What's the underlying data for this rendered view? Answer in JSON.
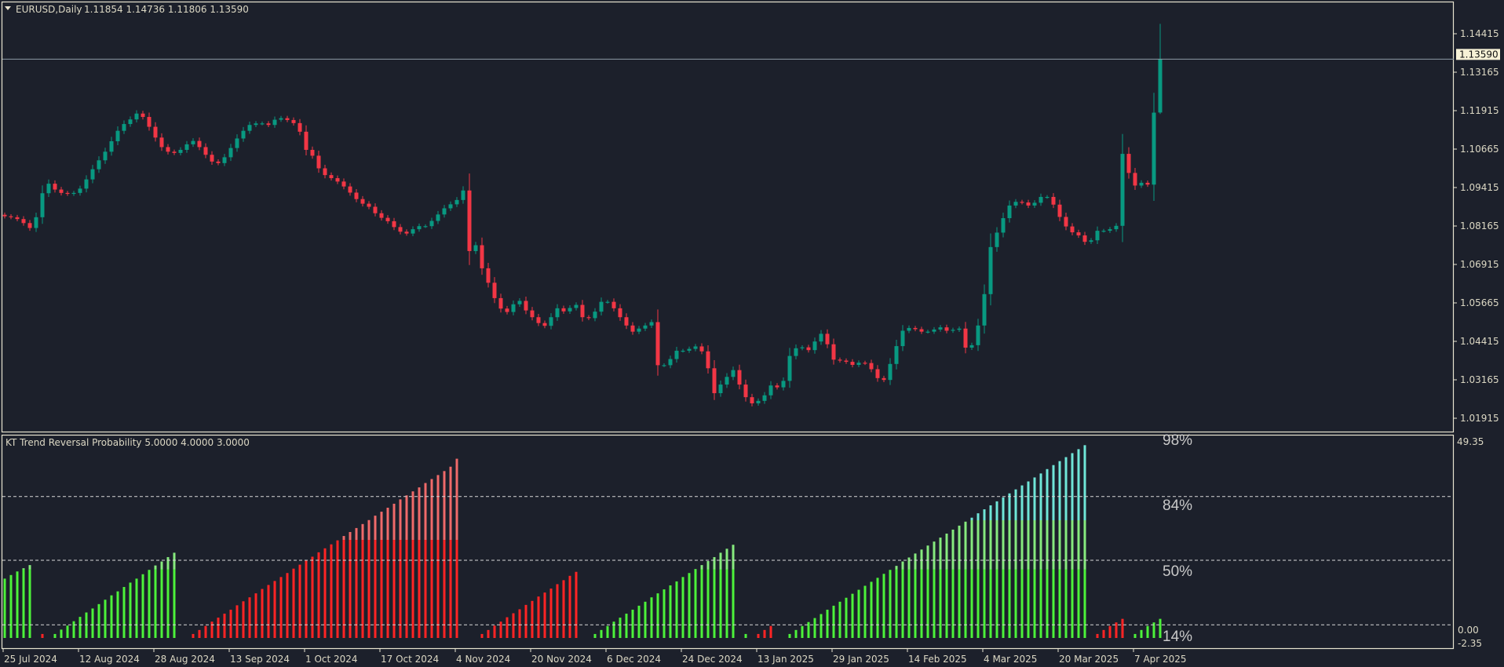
{
  "header": {
    "symbol": "EURUSD,Daily",
    "ohlc_text": "1.11854 1.14736 1.11806 1.13590",
    "menu_icon": "triangle-down-icon"
  },
  "indicator": {
    "title": "KT Trend Reversal Probability 5.0000 4.0000 3.0000",
    "axis_max_label": "49.35",
    "axis_zero_label": "0.00",
    "axis_min_label": "-2.35",
    "level_labels": [
      "98%",
      "84%",
      "50%",
      "14%"
    ]
  },
  "current_price_label": "1.13590",
  "colors": {
    "background": "#1c202b",
    "frame": "#e8e4d0",
    "bull_candle": "#089981",
    "bear_candle": "#f23645",
    "hist_bull_low": "#4cf23a",
    "hist_bull_mid": "#86ea7e",
    "hist_bull_high": "#6fe6d8",
    "hist_bear_low": "#ff2424",
    "hist_bear_high": "#f06a6a",
    "price_line": "#8c9aa6",
    "price_tag_bg": "#f6f1d6"
  },
  "chart_data": [
    {
      "type": "candlestick",
      "title": "EURUSD,Daily",
      "last_bar": {
        "open": 1.11854,
        "high": 1.14736,
        "low": 1.11806,
        "close": 1.1359
      },
      "y_ticks": [
        "1.14415",
        "1.13165",
        "1.11915",
        "1.10665",
        "1.09415",
        "1.08165",
        "1.06915",
        "1.05665",
        "1.04415",
        "1.03165",
        "1.01915"
      ],
      "x_ticks": [
        "25 Jul 2024",
        "12 Aug 2024",
        "28 Aug 2024",
        "13 Sep 2024",
        "1 Oct 2024",
        "17 Oct 2024",
        "4 Nov 2024",
        "20 Nov 2024",
        "6 Dec 2024",
        "24 Dec 2024",
        "13 Jan 2025",
        "29 Jan 2025",
        "14 Feb 2025",
        "4 Mar 2025",
        "20 Mar 2025",
        "7 Apr 2025"
      ],
      "bars_per_x_tick": 12,
      "ylim": [
        1.013,
        1.147
      ],
      "grid": false,
      "current_price": 1.1359,
      "close": [
        1.0848,
        1.0845,
        1.0839,
        1.0826,
        1.081,
        1.0845,
        1.0923,
        1.0954,
        1.0935,
        1.0924,
        1.0921,
        1.0924,
        1.0938,
        1.0968,
        1.1001,
        1.103,
        1.1058,
        1.1092,
        1.1126,
        1.1148,
        1.1163,
        1.1182,
        1.1171,
        1.1139,
        1.1104,
        1.1073,
        1.1058,
        1.1054,
        1.1064,
        1.1082,
        1.1093,
        1.1073,
        1.1048,
        1.1026,
        1.1021,
        1.104,
        1.107,
        1.1101,
        1.1126,
        1.1145,
        1.115,
        1.115,
        1.1145,
        1.1162,
        1.1167,
        1.1161,
        1.1151,
        1.1123,
        1.1064,
        1.1045,
        1.1004,
        1.0982,
        1.0972,
        1.0961,
        1.0945,
        1.0925,
        1.0904,
        1.0889,
        1.0879,
        1.0858,
        1.0843,
        1.0832,
        1.0813,
        1.0798,
        1.0792,
        1.0806,
        1.0816,
        1.0816,
        1.0833,
        1.0854,
        1.0874,
        1.0887,
        1.0901,
        1.0932,
        1.0735,
        1.0754,
        1.0679,
        1.0632,
        1.0582,
        1.0548,
        1.0537,
        1.0562,
        1.0573,
        1.0542,
        1.052,
        1.0501,
        1.0492,
        1.052,
        1.0549,
        1.0539,
        1.055,
        1.056,
        1.052,
        1.0517,
        1.0538,
        1.057,
        1.057,
        1.0549,
        1.052,
        1.0493,
        1.0473,
        1.0483,
        1.0493,
        1.0504,
        1.0364,
        1.0364,
        1.0384,
        1.0411,
        1.0411,
        1.0417,
        1.0425,
        1.0409,
        1.0354,
        1.0273,
        1.0301,
        1.0326,
        1.0348,
        1.0301,
        1.026,
        1.024,
        1.0248,
        1.0266,
        1.0298,
        1.0292,
        1.0313,
        1.0394,
        1.0419,
        1.0422,
        1.0413,
        1.0441,
        1.0466,
        1.0432,
        1.0382,
        1.0379,
        1.0375,
        1.0365,
        1.0372,
        1.0371,
        1.0351,
        1.0322,
        1.0316,
        1.0368,
        1.0426,
        1.0476,
        1.0485,
        1.0481,
        1.0473,
        1.0473,
        1.048,
        1.0487,
        1.0476,
        1.0479,
        1.0483,
        1.0421,
        1.0429,
        1.0493,
        1.0595,
        1.0748,
        1.0795,
        1.0842,
        1.0883,
        1.0895,
        1.0893,
        1.0883,
        1.0892,
        1.0911,
        1.0911,
        1.0886,
        1.0846,
        1.0815,
        1.0796,
        1.0786,
        1.0765,
        1.077,
        1.0801,
        1.0801,
        1.0806,
        1.0817,
        1.1051,
        1.0989,
        1.0948,
        1.0957,
        1.0951,
        1.1185,
        1.1359
      ]
    },
    {
      "type": "bar",
      "title": "KT Trend Reversal Probability 5.0000 4.0000 3.0000",
      "ylim": [
        -2.35,
        49.35
      ],
      "levels": [
        35.5,
        19.5,
        3.3
      ],
      "level_labels": [
        "84%",
        "50%",
        "14%"
      ],
      "top_label": "98%",
      "bullish": [
        14.9,
        15.8,
        16.7,
        17.5,
        18.3,
        0,
        0,
        0,
        1.0,
        2.1,
        3.1,
        4.2,
        5.3,
        6.4,
        7.4,
        8.5,
        9.6,
        10.7,
        11.7,
        12.8,
        13.9,
        14.9,
        16.0,
        17.1,
        18.2,
        19.2,
        20.3,
        21.4,
        0,
        0,
        0,
        0,
        0,
        0,
        0,
        0,
        0,
        0,
        0,
        0,
        0,
        0,
        0,
        0,
        0,
        0,
        0,
        0,
        0,
        0,
        0,
        0,
        0,
        0,
        0,
        0,
        0,
        0,
        0,
        0,
        0,
        0,
        0,
        0,
        0,
        0,
        0,
        0,
        0,
        0,
        0,
        0,
        0,
        0,
        0,
        0,
        0,
        0,
        0,
        0,
        0,
        0,
        0,
        0,
        0,
        0,
        0,
        0,
        0,
        0,
        0,
        0,
        0,
        0,
        1.0,
        2.0,
        3.0,
        4.1,
        5.1,
        6.1,
        7.1,
        8.1,
        9.1,
        10.2,
        11.2,
        12.2,
        13.2,
        14.2,
        15.3,
        16.3,
        17.3,
        18.3,
        19.3,
        20.3,
        21.4,
        22.4,
        23.4,
        0,
        1.0,
        0,
        0,
        0,
        0,
        0,
        0,
        1.0,
        2.0,
        3.0,
        4.0,
        5.0,
        6.0,
        7.1,
        8.1,
        9.1,
        10.1,
        11.1,
        12.1,
        13.1,
        14.1,
        15.1,
        16.1,
        17.1,
        18.1,
        19.2,
        20.2,
        21.2,
        22.2,
        23.2,
        24.2,
        25.2,
        26.2,
        27.2,
        28.2,
        29.2,
        30.2,
        31.3,
        32.3,
        33.3,
        34.3,
        35.3,
        36.3,
        37.3,
        38.3,
        39.3,
        40.3,
        41.3,
        42.4,
        43.4,
        44.4,
        45.4,
        46.4,
        47.4,
        48.4,
        0,
        0,
        0,
        0,
        0,
        0,
        0,
        1.0,
        2.0,
        3.0,
        3.9,
        4.8
      ],
      "bearish": [
        0,
        0,
        0,
        0,
        0,
        0,
        1.0,
        0,
        0,
        0,
        0,
        0,
        0,
        0,
        0,
        0,
        0,
        0,
        0,
        0,
        0,
        0,
        0,
        0,
        0,
        0,
        0,
        0,
        0,
        0,
        1.0,
        2.0,
        3.0,
        4.1,
        5.1,
        6.1,
        7.1,
        8.2,
        9.2,
        10.2,
        11.2,
        12.3,
        13.3,
        14.3,
        15.3,
        16.3,
        17.4,
        18.4,
        19.4,
        20.4,
        21.5,
        22.5,
        23.5,
        24.5,
        25.6,
        26.6,
        27.6,
        28.6,
        29.6,
        30.7,
        31.7,
        32.7,
        33.7,
        34.8,
        35.8,
        36.8,
        37.8,
        38.9,
        39.9,
        40.9,
        41.9,
        43.0,
        45.0,
        0,
        0,
        0,
        1.0,
        2.0,
        3.1,
        4.1,
        5.2,
        6.2,
        7.2,
        8.3,
        9.3,
        10.4,
        11.4,
        12.4,
        13.5,
        14.5,
        15.6,
        16.6,
        0,
        0,
        0,
        0,
        0,
        0,
        0,
        0,
        0,
        0,
        0,
        0,
        0,
        0,
        0,
        0,
        0,
        0,
        0,
        0,
        0,
        0,
        0,
        0,
        0,
        0,
        0,
        0,
        1.0,
        2.0,
        3.0,
        0,
        0,
        0,
        0,
        0,
        0,
        0,
        0,
        0,
        0,
        0,
        0,
        0,
        0,
        0,
        0,
        0,
        0,
        0,
        0,
        0,
        0,
        0,
        0,
        0,
        0,
        0,
        0,
        0,
        0,
        0,
        0,
        0,
        0,
        0,
        0,
        0,
        0,
        0,
        0,
        0,
        0,
        0,
        0,
        0,
        0,
        0,
        0,
        0,
        0,
        0,
        1.0,
        2.0,
        3.0,
        3.9,
        4.8,
        0,
        0,
        0,
        0,
        0,
        0
      ]
    }
  ]
}
